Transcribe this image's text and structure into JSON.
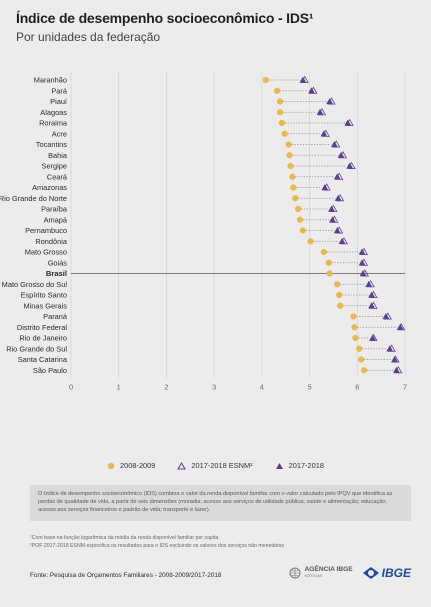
{
  "header": {
    "title": "Índice de desempenho socioeconômico - IDS¹",
    "subtitle": "Por unidades da federação"
  },
  "colors": {
    "series_2008": "#e8b84a",
    "series_esnm": "#5e3f8f",
    "series_2017": "#5e3f8f",
    "grid": "#cfcfcf",
    "brasil_line": "#555555"
  },
  "chart_data": {
    "type": "scatter",
    "orientation": "horizontal",
    "xlim": [
      0,
      7
    ],
    "x_ticks": [
      "0",
      "1",
      "2",
      "3",
      "4",
      "5",
      "6",
      "7"
    ],
    "grid": true,
    "legend_position": "bottom",
    "highlight_category": "Brasil",
    "categories": [
      "Maranhão",
      "Pará",
      "Piauí",
      "Alagoas",
      "Roraima",
      "Acre",
      "Tocantins",
      "Bahia",
      "Sergipe",
      "Ceará",
      "Amazonas",
      "Rio Grande do Norte",
      "Paraíba",
      "Amapá",
      "Pernambuco",
      "Rondônia",
      "Mato Grosso",
      "Goiás",
      "Brasil",
      "Mato Grosso do Sul",
      "Espírito Santo",
      "Minas Gerais",
      "Paraná",
      "Distrito Federal",
      "Rio de Janeiro",
      "Rio Grande do Sul",
      "Santa Catarina",
      "São Paulo"
    ],
    "series": [
      {
        "name": "2008-2009",
        "marker": "circle",
        "values": [
          4.08,
          4.32,
          4.38,
          4.38,
          4.42,
          4.48,
          4.56,
          4.58,
          4.6,
          4.64,
          4.66,
          4.7,
          4.76,
          4.8,
          4.86,
          5.02,
          5.3,
          5.4,
          5.42,
          5.58,
          5.62,
          5.64,
          5.92,
          5.94,
          5.96,
          6.04,
          6.08,
          6.14
        ]
      },
      {
        "name": "2017-2018 ESNM²",
        "marker": "triangle-outline",
        "values": [
          4.9,
          5.08,
          5.46,
          5.26,
          5.84,
          5.34,
          5.56,
          5.7,
          5.88,
          5.62,
          5.36,
          5.64,
          5.5,
          5.52,
          5.62,
          5.72,
          6.14,
          6.14,
          6.16,
          6.28,
          6.34,
          6.34,
          6.64,
          6.92,
          6.34,
          6.72,
          6.8,
          6.86
        ]
      },
      {
        "name": "2017-2018",
        "marker": "triangle",
        "values": [
          4.86,
          5.04,
          5.42,
          5.22,
          5.8,
          5.3,
          5.52,
          5.66,
          5.84,
          5.58,
          5.32,
          5.6,
          5.46,
          5.48,
          5.58,
          5.68,
          6.1,
          6.1,
          6.12,
          6.24,
          6.3,
          6.3,
          6.6,
          6.9,
          6.32,
          6.68,
          6.78,
          6.82
        ]
      }
    ]
  },
  "notes": {
    "box_text": "O índice de desempenho socioeconômico (IDS) combina o valor da renda disponível familiar com o valor calculado pelo IPQV que identifica as perdas de qualidade de vida, a partir de seis dimensões (moradia; acesso aos serviços de utilidade pública; saúde e alimentação; educação; acesso aos serviços financeiros e padrão de vida; transporte e lazer).",
    "footnote_1": "¹Com base na função logarítmica da média da renda disponível familiar per capita",
    "footnote_2": "²POF 2017-2018 ESNM especifica os resultados para o IDS excluindo os valores dos serviços não monetários",
    "source": "Fonte: Pesquisa de Orçamentos Familiares - 2008-2009/2017-2018"
  },
  "logos": {
    "agencia": "AGÊNCIA IBGE",
    "agencia_sub": "NOTÍCIAS",
    "ibge": "IBGE"
  }
}
